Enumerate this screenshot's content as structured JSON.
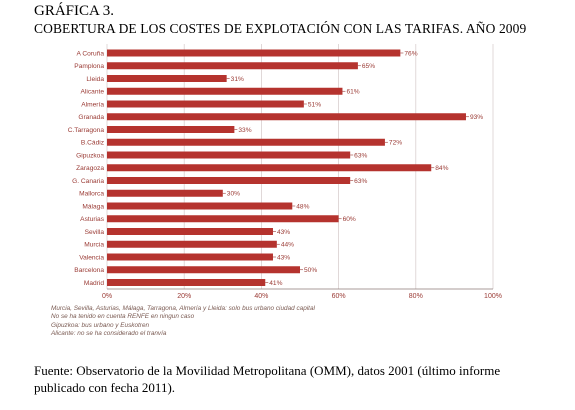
{
  "header": {
    "figure_number": "GRÁFICA 3.",
    "title": "COBERTURA DE LOS COSTES DE EXPLOTACIÓN CON LAS TARIFAS. AÑO 2009"
  },
  "chart_data": {
    "type": "bar",
    "orientation": "horizontal",
    "categories": [
      "A Coruña",
      "Pamplona",
      "Lleida",
      "Alicante",
      "Almería",
      "Granada",
      "C.Tarragona",
      "B.Cádiz",
      "Gipuzkoa",
      "Zaragoza",
      "G. Canaria",
      "Mallorca",
      "Málaga",
      "Asturias",
      "Sevilla",
      "Murcia",
      "Valencia",
      "Barcelona",
      "Madrid"
    ],
    "values": [
      76,
      65,
      31,
      61,
      51,
      93,
      33,
      72,
      63,
      84,
      63,
      30,
      48,
      60,
      43,
      44,
      43,
      50,
      41
    ],
    "value_labels": [
      "76%",
      "65%",
      "31%",
      "61%",
      "51%",
      "93%",
      "33%",
      "72%",
      "63%",
      "84%",
      "63%",
      "30%",
      "48%",
      "60%",
      "43%",
      "44%",
      "43%",
      "50%",
      "41%"
    ],
    "x_ticks": [
      0,
      20,
      40,
      60,
      80,
      100
    ],
    "x_tick_labels": [
      "0%",
      "20%",
      "40%",
      "60%",
      "80%",
      "100%"
    ],
    "xlim": [
      0,
      100
    ],
    "grid": "vertical",
    "bar_color": "#b5332e",
    "label_color": "#9a3a34",
    "grid_color": "#d9cfcf"
  },
  "notes": [
    "Murcia, Sevilla, Asturias, Málaga, Tarragona, Almería y Lleida: solo bus urbano ciudad capital",
    "No se ha tenido en cuenta RENFE en ningun caso",
    "Gipuzkoa: bus urbano y Euskotren",
    "Alicante: no se ha considerado el tranvía"
  ],
  "source": "Fuente:  Observatorio de la Movilidad Metropolitana (OMM), datos 2001 (último informe publicado con fecha 2011)."
}
